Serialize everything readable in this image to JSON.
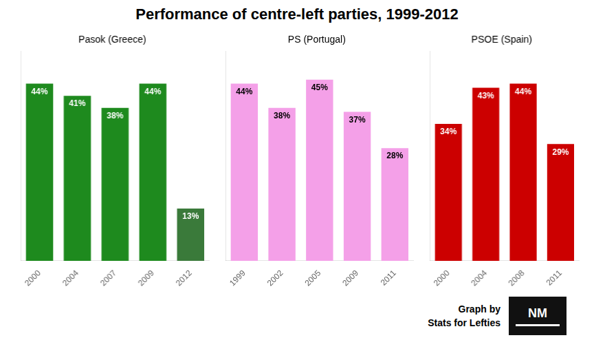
{
  "title": "Performance of centre-left parties, 1999-2012",
  "annotations": [
    "Graph by",
    "Stats for Lefties",
    "NM"
  ],
  "chart_data": [
    {
      "type": "bar",
      "subtitle": "Pasok (Greece)",
      "categories": [
        "2000",
        "2004",
        "2007",
        "2009",
        "2012"
      ],
      "values": [
        44,
        41,
        38,
        44,
        13
      ],
      "value_labels": [
        "44%",
        "41%",
        "38%",
        "44%",
        "13%"
      ],
      "colors": [
        "#1e8a1e",
        "#1e8a1e",
        "#1e8a1e",
        "#1e8a1e",
        "#3a7a3a"
      ],
      "ylim": [
        0,
        52
      ],
      "grid": false,
      "data_labels": true,
      "tick_labels": "x"
    },
    {
      "type": "bar",
      "subtitle": "PS (Portugal)",
      "categories": [
        "1999",
        "2002",
        "2005",
        "2009",
        "2011"
      ],
      "values": [
        44,
        38,
        45,
        37,
        28
      ],
      "value_labels": [
        "44%",
        "38%",
        "45%",
        "37%",
        "28%"
      ],
      "colors": [
        "#f4a0e8",
        "#f4a0e8",
        "#f4a0e8",
        "#f4a0e8",
        "#f4a0e8"
      ],
      "ylim": [
        0,
        52
      ],
      "grid": false,
      "data_labels": true,
      "tick_labels": "x"
    },
    {
      "type": "bar",
      "subtitle": "PSOE (Spain)",
      "categories": [
        "2000",
        "2004",
        "2008",
        "2011"
      ],
      "values": [
        34,
        43,
        44,
        29
      ],
      "value_labels": [
        "34%",
        "43%",
        "44%",
        "29%"
      ],
      "colors": [
        "#cc0000",
        "#cc0000",
        "#cc0000",
        "#cc0000"
      ],
      "ylim": [
        0,
        52
      ],
      "grid": false,
      "data_labels": true,
      "tick_labels": "x"
    }
  ]
}
